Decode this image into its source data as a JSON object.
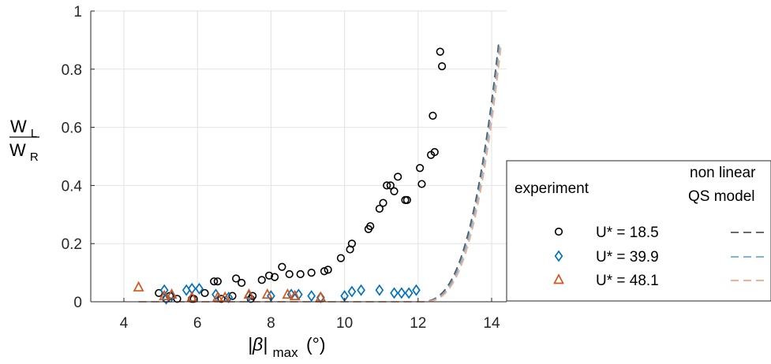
{
  "chart_data": {
    "type": "scatter",
    "xlabel": {
      "main": "|β|",
      "sub": "max",
      "unit": "(°)"
    },
    "ylabel": {
      "num_main": "W",
      "num_sub": "L",
      "den_main": "W",
      "den_sub": "R"
    },
    "xlim": [
      3.3,
      14.6
    ],
    "ylim": [
      0,
      1
    ],
    "xticks": [
      4,
      6,
      8,
      10,
      12,
      14
    ],
    "yticks": [
      0,
      0.2,
      0.4,
      0.6,
      0.8,
      1
    ],
    "ytick_labels": [
      "0",
      "0.2",
      "0.4",
      "0.6",
      "0.8",
      "1"
    ],
    "grid": true,
    "legend": {
      "placement": "lower-right",
      "title_left": "experiment",
      "title_right_1": "non linear",
      "title_right_2": "QS model"
    },
    "series": [
      {
        "name": "U* = 18.5",
        "marker": "circle",
        "color": "#000000",
        "line_color": "#555555",
        "x": [
          4.95,
          5.15,
          5.25,
          5.45,
          5.85,
          5.9,
          6.2,
          6.45,
          6.55,
          6.65,
          6.95,
          7.05,
          7.2,
          7.45,
          7.5,
          7.75,
          7.95,
          8.1,
          8.3,
          8.5,
          8.8,
          9.1,
          9.45,
          9.55,
          9.9,
          10.15,
          10.2,
          10.65,
          10.7,
          10.95,
          11.05,
          11.15,
          11.25,
          11.35,
          11.45,
          11.65,
          11.7,
          12.05,
          12.1,
          12.35,
          12.4,
          12.45,
          12.6,
          12.65
        ],
        "y": [
          0.03,
          0.01,
          0.02,
          0.01,
          0.01,
          0.01,
          0.03,
          0.07,
          0.07,
          0.01,
          0.02,
          0.08,
          0.065,
          0.01,
          0.02,
          0.075,
          0.09,
          0.085,
          0.12,
          0.095,
          0.095,
          0.1,
          0.105,
          0.11,
          0.15,
          0.18,
          0.2,
          0.25,
          0.26,
          0.32,
          0.34,
          0.4,
          0.4,
          0.38,
          0.43,
          0.35,
          0.35,
          0.46,
          0.405,
          0.505,
          0.64,
          0.515,
          0.86,
          0.81
        ]
      },
      {
        "name": "U* = 39.9",
        "marker": "diamond",
        "color": "#0072BD",
        "line_color": "#6BAED6",
        "x": [
          5.1,
          5.15,
          5.3,
          5.7,
          5.85,
          6.05,
          6.5,
          6.85,
          7.4,
          8.0,
          8.55,
          8.75,
          9.1,
          9.35,
          10.0,
          10.2,
          10.45,
          10.95,
          11.35,
          11.55,
          11.75,
          11.95
        ],
        "y": [
          0.04,
          0.01,
          0.02,
          0.04,
          0.045,
          0.045,
          0.025,
          0.015,
          0.02,
          0.02,
          0.025,
          0.025,
          0.02,
          0.015,
          0.02,
          0.035,
          0.04,
          0.04,
          0.03,
          0.03,
          0.03,
          0.04
        ]
      },
      {
        "name": "U* = 48.1",
        "marker": "triangle",
        "color": "#D95319",
        "line_color": "#F4A582",
        "x": [
          4.4,
          5.1,
          5.3,
          5.85,
          6.55,
          6.75,
          7.4,
          7.9,
          8.45,
          8.65,
          9.35
        ],
        "y": [
          0.05,
          0.02,
          0.025,
          0.015,
          0.015,
          0.015,
          0.025,
          0.025,
          0.025,
          0.02,
          0.015
        ]
      }
    ]
  }
}
